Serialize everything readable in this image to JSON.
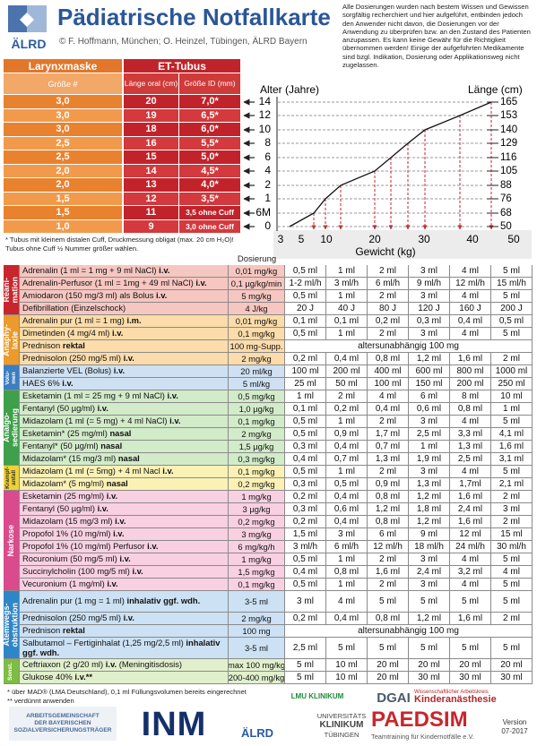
{
  "header": {
    "logo": "ÄLRD",
    "title": "Pädiatrische Notfallkarte",
    "credits": "© F. Hoffmann, München; O. Heinzel, Tübingen, ÄLRD Bayern",
    "disclaimer": "Alle Dosierungen wurden nach bestem Wissen und Gewissen sorgfältig recherchiert und hier aufgeführt, entbinden jedoch den Anwender nicht davon, die Dosierungen vor der Anwendung zu überprüfen bzw. an den Zustand des Patienten anzupassen. Es kann keine Gewähr für die Richtigkeit übernommen werden! Einige der aufgeführten Medikamente sind bzgl. Indikation, Dosierung oder Applikationsweg nicht zugelassen."
  },
  "airway": {
    "larynx_title": "Larynxmaske",
    "tube_title": "ET-Tubus",
    "larynx_header": "Größe #",
    "tube_headers": [
      "Länge oral (cm)",
      "Größe ID (mm)"
    ],
    "rows": [
      [
        "3,0",
        "20",
        "7,0*"
      ],
      [
        "3,0",
        "19",
        "6,5*"
      ],
      [
        "3,0",
        "18",
        "6,0*"
      ],
      [
        "2,5",
        "16",
        "5,5*"
      ],
      [
        "2,5",
        "15",
        "5,0*"
      ],
      [
        "2,0",
        "14",
        "4,5*"
      ],
      [
        "2,0",
        "13",
        "4,0*"
      ],
      [
        "1,5",
        "12",
        "3,5*"
      ],
      [
        "1,5",
        "11",
        "3,5 ohne Cuff"
      ],
      [
        "1,0",
        "9",
        "3,0 ohne Cuff"
      ]
    ],
    "note": [
      "* Tubus mit kleinem distalen Cuff, Druckmessung obligat (max. 20 cm H₂O)!",
      "Tubus ohne Cuff ½ Nummer größer wählen."
    ]
  },
  "nomogram": {
    "age_title": "Alter (Jahre)",
    "length_title": "Länge (cm)",
    "weight_title": "Gewicht (kg)",
    "ages": [
      "14",
      "12",
      "10",
      "8",
      "6",
      "4",
      "2",
      "1",
      "6M",
      "0"
    ],
    "lengths": [
      "165",
      "153",
      "140",
      "129",
      "116",
      "105",
      "88",
      "76",
      "68",
      "50"
    ],
    "weights": [
      "3",
      "5",
      "10",
      "20",
      "30",
      "40",
      "50"
    ]
  },
  "dosage": {
    "dose_header": "Dosierung",
    "groups": [
      {
        "label": [
          "Reani-",
          "mation"
        ],
        "rows": [
          {
            "name": "Adrenalin (1 ml = 1 mg + 9 ml NaCl)",
            "route": "i.v.",
            "dose": "0,01 mg/kg",
            "values": [
              "0,5 ml",
              "1 ml",
              "2 ml",
              "3 ml",
              "4 ml",
              "5 ml"
            ]
          },
          {
            "name": "Adrenalin-Perfusor (1 ml = 1mg + 49 ml NaCl)",
            "route": "i.v.",
            "dose": "0,1 µg/kg/min",
            "values": [
              "1-2 ml/h",
              "3 ml/h",
              "6 ml/h",
              "9 ml/h",
              "12 ml/h",
              "15 ml/h"
            ]
          },
          {
            "name": "Amiodaron (150 mg/3 ml) als Bolus",
            "route": "i.v.",
            "dose": "5 mg/kg",
            "values": [
              "0,5 ml",
              "1 ml",
              "2 ml",
              "3 ml",
              "4 ml",
              "5 ml"
            ]
          },
          {
            "name": "Defibrillation (Einzelschock)",
            "dose": "4 J/kg",
            "values": [
              "20 J",
              "40 J",
              "80 J",
              "120 J",
              "160 J",
              "200 J"
            ]
          }
        ]
      },
      {
        "label": [
          "Anaphy-",
          "laxie"
        ],
        "rows": [
          {
            "name": "Adrenalin pur (1 ml = 1 mg)",
            "route": "i.m.",
            "dose": "0,01 mg/kg",
            "values": [
              "0,1 ml",
              "0,1 ml",
              "0,2 ml",
              "0,3 ml",
              "0,4 ml",
              "0,5 ml"
            ]
          },
          {
            "name": "Dimetinden (4 mg/4 ml)",
            "route": "i.v.",
            "dose": "0,1 mg/kg",
            "values": [
              "0,5 ml",
              "1 ml",
              "2 ml",
              "3 ml",
              "4 ml",
              "5 ml"
            ]
          },
          {
            "name": "Prednison",
            "route": "rektal",
            "dose": "100 mg-Supp.",
            "span": "altersunabhängig 100 mg"
          },
          {
            "name": "Prednisolon (250 mg/5 ml)",
            "route": "i.v.",
            "dose": "2 mg/kg",
            "values": [
              "0,2 ml",
              "0,4 ml",
              "0,8 ml",
              "1,2 ml",
              "1,6 ml",
              "2 ml"
            ]
          }
        ]
      },
      {
        "label": [
          "Volu-",
          "men"
        ],
        "rows": [
          {
            "name": "Balanzierte VEL (Bolus)",
            "route": "i.v.",
            "dose": "20 ml/kg",
            "values": [
              "100 ml",
              "200 ml",
              "400 ml",
              "600 ml",
              "800 ml",
              "1000 ml"
            ]
          },
          {
            "name": "HAES 6%",
            "route": "i.v.",
            "dose": "5 ml/kg",
            "values": [
              "25 ml",
              "50 ml",
              "100 ml",
              "150 ml",
              "200 ml",
              "250 ml"
            ]
          }
        ]
      },
      {
        "label": [
          "Analgo-",
          "sedierung"
        ],
        "rows": [
          {
            "name": "Esketamin (1 ml = 25 mg + 9 ml NaCl)",
            "route": "i.v.",
            "dose": "0,5 mg/kg",
            "values": [
              "1 ml",
              "2 ml",
              "4 ml",
              "6 ml",
              "8 ml",
              "10 ml"
            ]
          },
          {
            "name": "Fentanyl (50 µg/ml)",
            "route": "i.v.",
            "dose": "1,0 µg/kg",
            "values": [
              "0,1 ml",
              "0,2 ml",
              "0,4 ml",
              "0,6 ml",
              "0,8 ml",
              "1 ml"
            ]
          },
          {
            "name": "Midazolam  (1 ml (= 5 mg) + 4 ml NaCl)",
            "route": "i.v.",
            "dose": "0,1 mg/kg",
            "values": [
              "0,5 ml",
              "1 ml",
              "2 ml",
              "3 ml",
              "4 ml",
              "5 ml"
            ]
          },
          {
            "name": "Esketamin* (25 mg/ml)",
            "route": "nasal",
            "dose": "2 mg/kg",
            "values": [
              "0,5 ml",
              "0,9 ml",
              "1,7 ml",
              "2,5 ml",
              "3,3 ml",
              "4,1 ml"
            ]
          },
          {
            "name": "Fentanyl* (50 µg/ml)",
            "route": "nasal",
            "dose": "1,5 µg/kg",
            "values": [
              "0,3 ml",
              "0,4 ml",
              "0,7 ml",
              "1 ml",
              "1,3 ml",
              "1,6 ml"
            ]
          },
          {
            "name": "Midazolam* (15 mg/3 ml)",
            "route": "nasal",
            "dose": "0,3 mg/kg",
            "values": [
              "0,4 ml",
              "0,7 ml",
              "1,3 ml",
              "1,9 ml",
              "2,5 ml",
              "3,1 ml"
            ]
          }
        ]
      },
      {
        "label": [
          "Krampf-",
          "anfall"
        ],
        "rows": [
          {
            "name": "Midazolam  (1 ml (= 5mg) + 4 ml Nacl",
            "route": "i.v.",
            "dose": "0,1 mg/kg",
            "values": [
              "0,5 ml",
              "1 ml",
              "2 ml",
              "3 ml",
              "4 ml",
              "5 ml"
            ]
          },
          {
            "name": "Midazolam* (5 mg/ml)",
            "route": "nasal",
            "dose": "0,2 mg/kg",
            "values": [
              "0,3 ml",
              "0,5 ml",
              "0,9 ml",
              "1,3 ml",
              "1,7ml",
              "2,1 ml"
            ]
          }
        ]
      },
      {
        "label": [
          "Narkose"
        ],
        "rows": [
          {
            "name": "Esketamin (25 mg/ml)",
            "route": "i.v.",
            "dose": "1 mg/kg",
            "values": [
              "0,2 ml",
              "0,4 ml",
              "0,8 ml",
              "1,2 ml",
              "1,6 ml",
              "2 ml"
            ]
          },
          {
            "name": "Fentanyl (50 µg/ml)",
            "route": "i.v.",
            "dose": "3 µg/kg",
            "values": [
              "0,3 ml",
              "0,6 ml",
              "1,2 ml",
              "1,8 ml",
              "2,4 ml",
              "3 ml"
            ]
          },
          {
            "name": "Midazolam (15 mg/3 ml)",
            "route": "i.v.",
            "dose": "0,2 mg/kg",
            "values": [
              "0,2 ml",
              "0,4 ml",
              "0,8 ml",
              "1,2 ml",
              "1,6 ml",
              "2 ml"
            ]
          },
          {
            "name": "Propofol 1% (10 mg/ml)",
            "route": "i.v.",
            "dose": "3 mg/kg",
            "values": [
              "1,5 ml",
              "3 ml",
              "6 ml",
              "9 ml",
              "12 ml",
              "15 ml"
            ]
          },
          {
            "name": "Propofol 1% (10 mg/ml) Perfusor",
            "route": "i.v.",
            "dose": "6 mg/kg/h",
            "values": [
              "3 ml/h",
              "6 ml/h",
              "12 ml/h",
              "18 ml/h",
              "24 ml/h",
              "30 ml/h"
            ]
          },
          {
            "name": "Rocuronium (50 mg/5 ml)",
            "route": "i.v.",
            "dose": "1 mg/kg",
            "values": [
              "0,5 ml",
              "1 ml",
              "2 ml",
              "3 ml",
              "4 ml",
              "5 ml"
            ]
          },
          {
            "name": "Succinylcholin (100 mg/5 ml)",
            "route": "i.v.",
            "dose": "1,5 mg/kg",
            "values": [
              "0,4 ml",
              "0,8 ml",
              "1,6 ml",
              "2,4 ml",
              "3,2 ml",
              "4 ml"
            ]
          },
          {
            "name": "Vecuronium (1 mg/ml)",
            "route": "i.v.",
            "dose": "0,1 mg/kg",
            "values": [
              "0,5 ml",
              "1 ml",
              "2 ml",
              "3 ml",
              "4 ml",
              "5 ml"
            ]
          }
        ]
      },
      {
        "label": [
          "Atemwegs-",
          "obstruktion"
        ],
        "rows": [
          {
            "name": "Adrenalin pur (1 mg = 1 ml)",
            "route": "inhalativ ggf. wdh.",
            "dose": "3-5 ml",
            "values": [
              "3 ml",
              "4 ml",
              "5 ml",
              "5 ml",
              "5 ml",
              "5 ml"
            ]
          },
          {
            "name": "Prednisolon (250 mg/5 ml)",
            "route": "i.v.",
            "dose": "2 mg/kg",
            "values": [
              "0,2 ml",
              "0,4 ml",
              "0,8 ml",
              "1,2 ml",
              "1,6 ml",
              "2 ml"
            ]
          },
          {
            "name": "Prednison",
            "route": "rektal",
            "dose": "100 mg",
            "span": "altersunabhängig 100 mg"
          },
          {
            "name": "Salbutamol – Fertiginhalat (1,25 mg/2,5 ml)",
            "route": "inhalativ ggf. wdh.",
            "dose": "3-5 ml",
            "values": [
              "2,5 ml",
              "5 ml",
              "5 ml",
              "5 ml",
              "5 ml",
              "5 ml"
            ]
          }
        ]
      },
      {
        "label": [
          "Sonst."
        ],
        "rows": [
          {
            "name": "Ceftriaxon (2 g/20 ml)",
            "route": "i.v.",
            "suffix": "(Meningitisdosis)",
            "dose": "max 100 mg/kg",
            "values": [
              "5 ml",
              "10 ml",
              "20 ml",
              "20 ml",
              "20 ml",
              "20 ml"
            ]
          },
          {
            "name": "Glukose 40%",
            "route": "i.v.**",
            "dose": "200-400 mg/kg",
            "values": [
              "5 ml",
              "10 ml",
              "20 ml",
              "30 ml",
              "30 ml",
              "30 ml"
            ]
          }
        ]
      }
    ]
  },
  "footer": {
    "notes": [
      "*  über MAD® (LMA Deutschland), 0,1 ml Füllungsvolumen bereits eingerechnet",
      "** verdünnt anwenden"
    ],
    "asvt": [
      "ARBEITSGEMEINSCHAFT",
      "DER BAYERISCHEN",
      "SOZIALVERSICHERUNGSTRÄGER"
    ],
    "inm": "INM",
    "alrd": "ÄLRD",
    "lmu": "LMU KLINIKUM",
    "tuebingen": [
      "UNIVERSITÄTS",
      "KLINIKUM",
      "TÜBINGEN"
    ],
    "dgai": "DGAI",
    "waki": [
      "Wissenschaftlicher Arbeitskreis",
      "Kinderanästhesie"
    ],
    "paedsim": "PAEDSIM",
    "paedsim_sub": "Teamtraining für Kindernotfälle e.V.",
    "version": [
      "Version",
      "07-2017"
    ]
  }
}
